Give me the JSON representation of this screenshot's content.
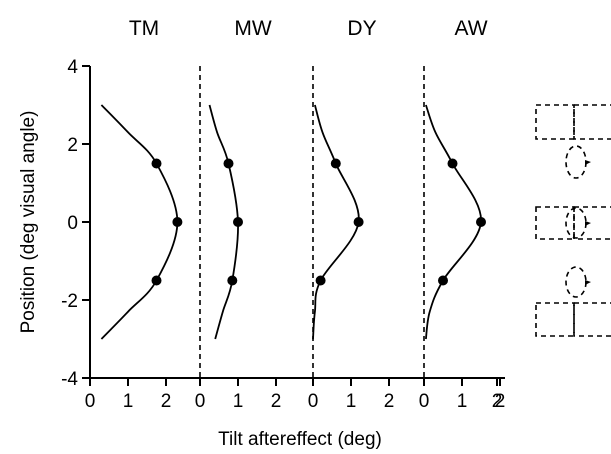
{
  "chart_data": [
    {
      "type": "line",
      "title": "TM",
      "xlim": [
        0,
        3
      ],
      "xticks": [
        "0",
        "1",
        "2"
      ],
      "reference_x": null,
      "points": [
        [
          1.75,
          1.5
        ],
        [
          2.3,
          0
        ],
        [
          1.75,
          -1.5
        ]
      ],
      "curve": [
        [
          0.3,
          3.0
        ],
        [
          1.0,
          2.3
        ],
        [
          1.75,
          1.5
        ],
        [
          2.3,
          0
        ],
        [
          1.75,
          -1.5
        ],
        [
          1.0,
          -2.3
        ],
        [
          0.3,
          -3.0
        ]
      ]
    },
    {
      "type": "line",
      "title": "MW",
      "xlim": [
        0,
        3
      ],
      "xticks": [
        "0",
        "1",
        "2"
      ],
      "reference_x": 0,
      "points": [
        [
          0.75,
          1.5
        ],
        [
          1.0,
          0
        ],
        [
          0.85,
          -1.5
        ]
      ],
      "curve": [
        [
          0.25,
          3.0
        ],
        [
          0.45,
          2.3
        ],
        [
          0.75,
          1.5
        ],
        [
          1.0,
          0
        ],
        [
          0.85,
          -1.5
        ],
        [
          0.6,
          -2.3
        ],
        [
          0.4,
          -3.0
        ]
      ]
    },
    {
      "type": "line",
      "title": "DY",
      "xlim": [
        0,
        3
      ],
      "xticks": [
        "0",
        "1",
        "2"
      ],
      "reference_x": 0,
      "points": [
        [
          0.6,
          1.5
        ],
        [
          1.2,
          0
        ],
        [
          0.2,
          -1.5
        ]
      ],
      "curve": [
        [
          0.05,
          3.0
        ],
        [
          0.25,
          2.3
        ],
        [
          0.6,
          1.5
        ],
        [
          1.2,
          0
        ],
        [
          0.2,
          -1.5
        ],
        [
          0.05,
          -2.3
        ],
        [
          0.0,
          -3.0
        ]
      ]
    },
    {
      "type": "line",
      "title": "AW",
      "xlim": [
        0,
        3
      ],
      "xticks": [
        "0",
        "1",
        "2"
      ],
      "reference_x": 0,
      "points": [
        [
          0.75,
          1.5
        ],
        [
          1.5,
          0
        ],
        [
          0.5,
          -1.5
        ]
      ],
      "curve": [
        [
          0.05,
          3.0
        ],
        [
          0.3,
          2.3
        ],
        [
          0.75,
          1.5
        ],
        [
          1.5,
          0
        ],
        [
          0.5,
          -1.5
        ],
        [
          0.15,
          -2.3
        ],
        [
          0.05,
          -3.0
        ]
      ]
    }
  ],
  "y_axis": {
    "label": "Position (deg visual angle)",
    "ylim": [
      -4,
      4
    ],
    "ticks": [
      "4",
      "2",
      "0",
      "-2",
      "-4"
    ]
  },
  "x_axis": {
    "label": "Tilt aftereffect (deg)",
    "last_tick": "2"
  },
  "legend_icons": [
    "grid-above-dotted-ellipse",
    "dotted-ellipse-inside-grid",
    "dotted-ellipse-above-grid"
  ]
}
